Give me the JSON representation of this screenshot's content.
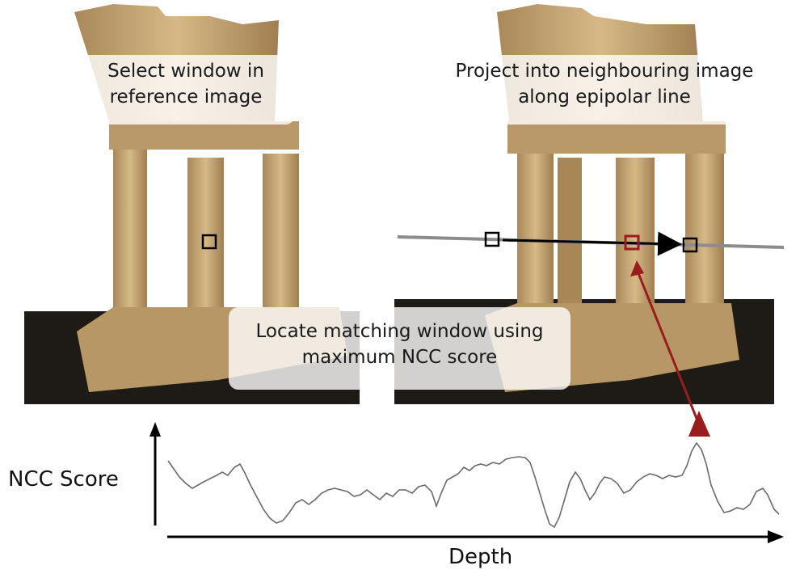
{
  "captions": {
    "reference_line1": "Select window in",
    "reference_line2": "reference image",
    "project_line1": "Project into neighbouring image",
    "project_line2": "along epipolar line",
    "locate_line1": "Locate matching window using",
    "locate_line2": "maximum NCC score"
  },
  "axes": {
    "ylabel": "NCC Score",
    "xlabel": "Depth"
  },
  "colors": {
    "stone": "#c9a877",
    "stone_dark": "#8e6f46",
    "ground": "#1e1a16",
    "epipolar_line": "#8c8c8c",
    "highlight": "#9b1c1c",
    "curve": "#666666"
  }
}
